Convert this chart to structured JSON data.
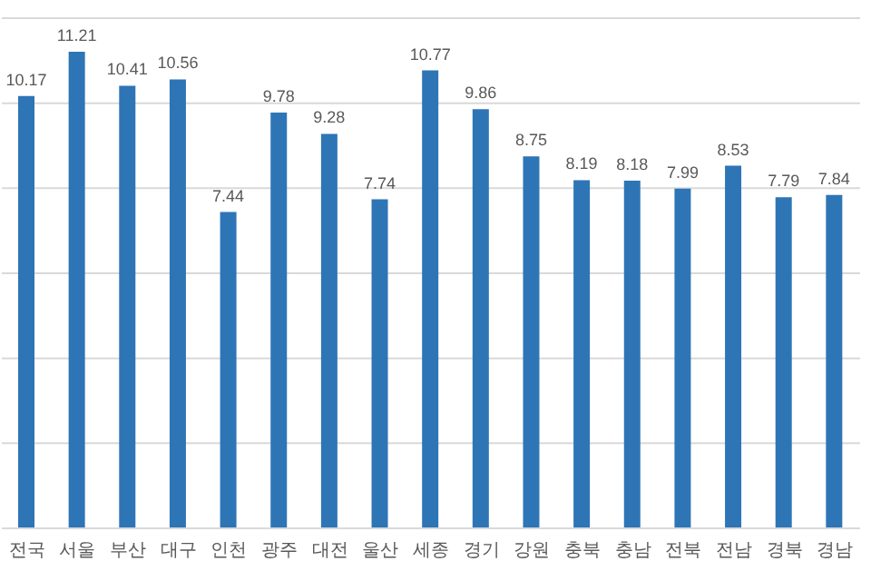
{
  "chart_data": {
    "type": "bar",
    "categories": [
      "전국",
      "서울",
      "부산",
      "대구",
      "인천",
      "광주",
      "대전",
      "울산",
      "세종",
      "경기",
      "강원",
      "충북",
      "충남",
      "전북",
      "전남",
      "경북",
      "경남"
    ],
    "values": [
      10.17,
      11.21,
      10.41,
      10.56,
      7.44,
      9.78,
      9.28,
      7.74,
      10.77,
      9.86,
      8.75,
      8.19,
      8.18,
      7.99,
      8.53,
      7.79,
      7.84
    ],
    "color": "#2e75b6",
    "ylim": [
      0,
      12
    ],
    "tick_labels": "x",
    "grid": "y",
    "data_labels": true,
    "legend": false
  }
}
